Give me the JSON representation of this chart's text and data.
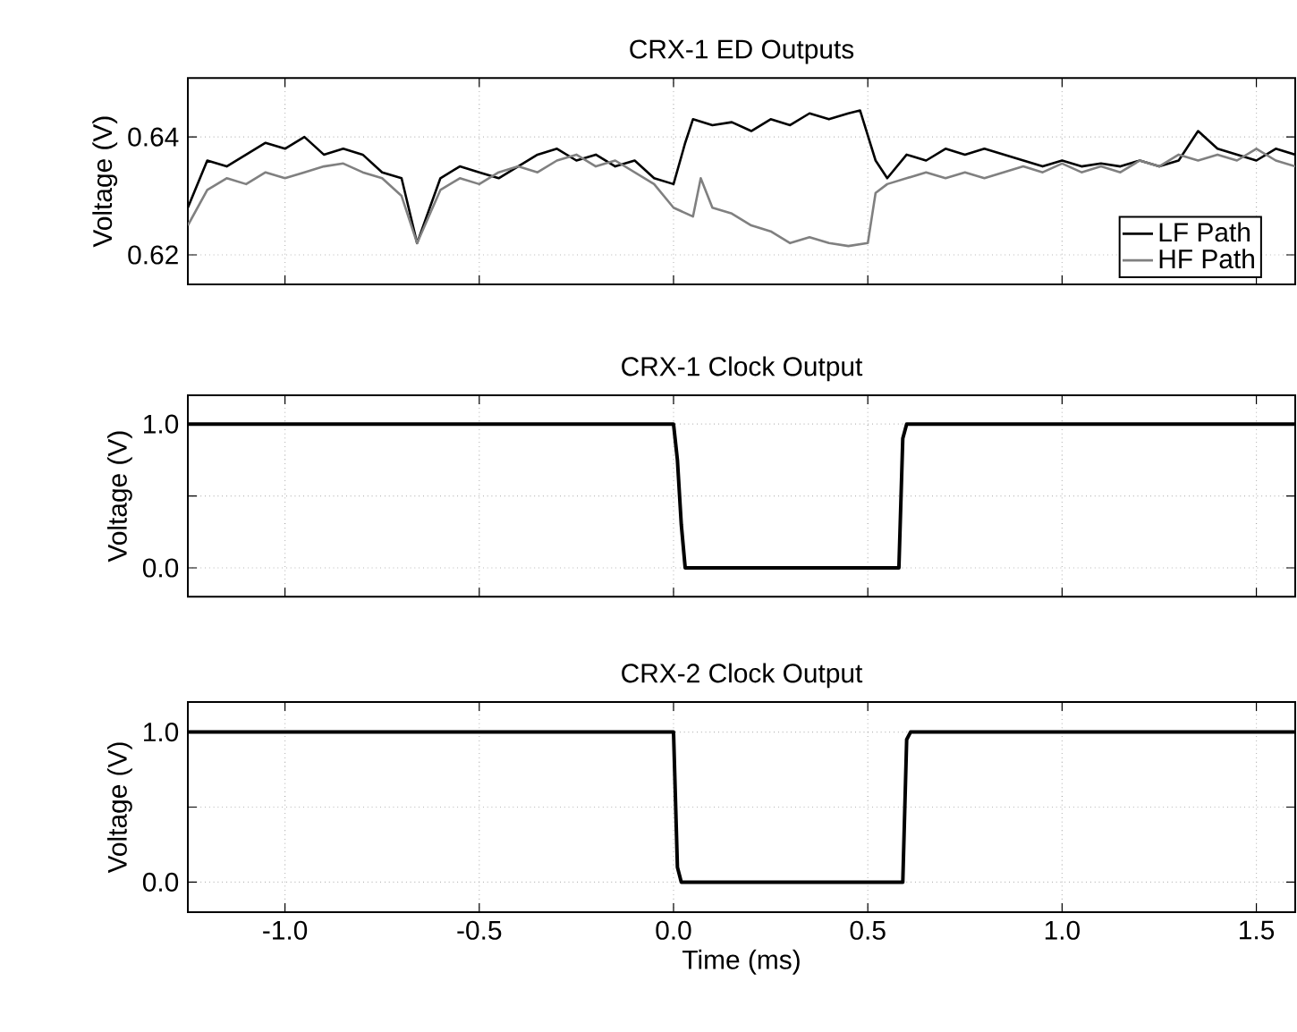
{
  "chart_data": [
    {
      "type": "line",
      "title": "CRX-1 ED Outputs",
      "ylabel": "Voltage (V)",
      "xlim": [
        -1.25,
        1.6
      ],
      "ylim": [
        0.615,
        0.65
      ],
      "xticks": [
        {
          "value": -1.0,
          "label": null
        },
        {
          "value": -0.5,
          "label": null
        },
        {
          "value": 0.0,
          "label": null
        },
        {
          "value": 0.5,
          "label": null
        },
        {
          "value": 1.0,
          "label": null
        },
        {
          "value": 1.5,
          "label": null
        }
      ],
      "yticks": [
        0.62,
        0.64
      ],
      "grid": true,
      "legend": "bottom right",
      "tick_labels": "y",
      "series": [
        {
          "name": "LF Path",
          "color": "#000000",
          "x": [
            -1.25,
            -1.2,
            -1.15,
            -1.1,
            -1.05,
            -1.0,
            -0.95,
            -0.9,
            -0.85,
            -0.8,
            -0.75,
            -0.7,
            -0.66,
            -0.6,
            -0.55,
            -0.5,
            -0.45,
            -0.4,
            -0.35,
            -0.3,
            -0.25,
            -0.2,
            -0.15,
            -0.1,
            -0.05,
            0.0,
            0.03,
            0.05,
            0.1,
            0.15,
            0.2,
            0.25,
            0.3,
            0.35,
            0.4,
            0.45,
            0.48,
            0.52,
            0.55,
            0.6,
            0.65,
            0.7,
            0.75,
            0.8,
            0.85,
            0.9,
            0.95,
            1.0,
            1.05,
            1.1,
            1.15,
            1.2,
            1.25,
            1.3,
            1.35,
            1.4,
            1.45,
            1.5,
            1.55,
            1.6
          ],
          "values": [
            0.628,
            0.636,
            0.635,
            0.637,
            0.639,
            0.638,
            0.64,
            0.637,
            0.638,
            0.637,
            0.634,
            0.633,
            0.622,
            0.633,
            0.635,
            0.634,
            0.633,
            0.635,
            0.637,
            0.638,
            0.636,
            0.637,
            0.635,
            0.636,
            0.633,
            0.632,
            0.639,
            0.643,
            0.642,
            0.6425,
            0.641,
            0.643,
            0.642,
            0.644,
            0.643,
            0.644,
            0.6445,
            0.636,
            0.633,
            0.637,
            0.636,
            0.638,
            0.637,
            0.638,
            0.637,
            0.636,
            0.635,
            0.636,
            0.635,
            0.6355,
            0.635,
            0.636,
            0.635,
            0.636,
            0.641,
            0.638,
            0.637,
            0.636,
            0.638,
            0.637
          ]
        },
        {
          "name": "HF Path",
          "color": "#808080",
          "x": [
            -1.25,
            -1.2,
            -1.15,
            -1.1,
            -1.05,
            -1.0,
            -0.95,
            -0.9,
            -0.85,
            -0.8,
            -0.75,
            -0.7,
            -0.66,
            -0.6,
            -0.55,
            -0.5,
            -0.45,
            -0.4,
            -0.35,
            -0.3,
            -0.25,
            -0.2,
            -0.15,
            -0.1,
            -0.05,
            0.0,
            0.05,
            0.07,
            0.1,
            0.15,
            0.2,
            0.25,
            0.3,
            0.35,
            0.4,
            0.45,
            0.5,
            0.52,
            0.55,
            0.6,
            0.65,
            0.7,
            0.75,
            0.8,
            0.85,
            0.9,
            0.95,
            1.0,
            1.05,
            1.1,
            1.15,
            1.2,
            1.25,
            1.3,
            1.35,
            1.4,
            1.45,
            1.5,
            1.55,
            1.6
          ],
          "values": [
            0.625,
            0.631,
            0.633,
            0.632,
            0.634,
            0.633,
            0.634,
            0.635,
            0.6355,
            0.634,
            0.633,
            0.63,
            0.622,
            0.631,
            0.633,
            0.632,
            0.634,
            0.635,
            0.634,
            0.636,
            0.637,
            0.635,
            0.636,
            0.634,
            0.632,
            0.628,
            0.6265,
            0.633,
            0.628,
            0.627,
            0.625,
            0.624,
            0.622,
            0.623,
            0.622,
            0.6215,
            0.622,
            0.6305,
            0.632,
            0.633,
            0.634,
            0.633,
            0.634,
            0.633,
            0.634,
            0.635,
            0.634,
            0.6355,
            0.634,
            0.635,
            0.634,
            0.636,
            0.635,
            0.637,
            0.636,
            0.637,
            0.636,
            0.638,
            0.636,
            0.635
          ]
        }
      ]
    },
    {
      "type": "line",
      "title": "CRX-1 Clock Output",
      "ylabel": "Voltage (V)",
      "xlim": [
        -1.25,
        1.6
      ],
      "ylim": [
        -0.2,
        1.2
      ],
      "xticks": [
        {
          "value": -1.0,
          "label": null
        },
        {
          "value": -0.5,
          "label": null
        },
        {
          "value": 0.0,
          "label": null
        },
        {
          "value": 0.5,
          "label": null
        },
        {
          "value": 1.0,
          "label": null
        },
        {
          "value": 1.5,
          "label": null
        }
      ],
      "yticks": [
        {
          "value": 0.0,
          "label": "0.0"
        },
        {
          "value": 0.5,
          "label": null
        },
        {
          "value": 1.0,
          "label": "1.0"
        }
      ],
      "grid": true,
      "tick_labels": "y",
      "series": [
        {
          "color": "#000000",
          "x": [
            -1.25,
            0.0,
            0.01,
            0.02,
            0.03,
            0.58,
            0.59,
            0.6,
            1.6
          ],
          "values": [
            1.0,
            1.0,
            0.75,
            0.3,
            0.0,
            0.0,
            0.9,
            1.0,
            1.0
          ]
        }
      ]
    },
    {
      "type": "line",
      "title": "CRX-2 Clock Output",
      "ylabel": "Voltage (V)",
      "xlabel": "Time (ms)",
      "xlim": [
        -1.25,
        1.6
      ],
      "ylim": [
        -0.2,
        1.2
      ],
      "xticks": [
        {
          "value": -1.0,
          "label": "-1.0"
        },
        {
          "value": -0.5,
          "label": "-0.5"
        },
        {
          "value": 0.0,
          "label": "0.0"
        },
        {
          "value": 0.5,
          "label": "0.5"
        },
        {
          "value": 1.0,
          "label": "1.0"
        },
        {
          "value": 1.5,
          "label": "1.5"
        }
      ],
      "yticks": [
        {
          "value": 0.0,
          "label": "0.0"
        },
        {
          "value": 0.5,
          "label": null
        },
        {
          "value": 1.0,
          "label": "1.0"
        }
      ],
      "grid": true,
      "series": [
        {
          "color": "#000000",
          "x": [
            -1.25,
            0.0,
            0.01,
            0.02,
            0.59,
            0.6,
            0.61,
            1.6
          ],
          "values": [
            1.0,
            1.0,
            0.1,
            0.0,
            0.0,
            0.95,
            1.0,
            1.0
          ]
        }
      ]
    }
  ]
}
